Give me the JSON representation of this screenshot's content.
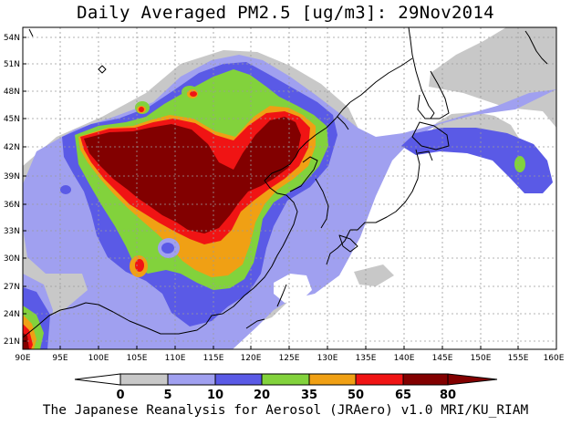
{
  "title": "Daily Averaged PM2.5 [ug/m3]: 29Nov2014",
  "credit": "The Japanese Reanalysis for Aerosol (JRAero) v1.0 MRI/KU_RIAM",
  "lat_labels": [
    "54N",
    "51N",
    "48N",
    "45N",
    "42N",
    "39N",
    "36N",
    "33N",
    "30N",
    "27N",
    "24N",
    "21N"
  ],
  "lon_labels": [
    "90E",
    "95E",
    "100E",
    "105E",
    "110E",
    "115E",
    "120E",
    "125E",
    "130E",
    "135E",
    "140E",
    "145E",
    "150E",
    "155E",
    "160E"
  ],
  "colorbar": {
    "levels": [
      "0",
      "5",
      "10",
      "20",
      "35",
      "50",
      "65",
      "80"
    ],
    "colors": [
      "#ffffff",
      "#c8c8c8",
      "#a0a0f0",
      "#5a5ae6",
      "#82d23c",
      "#f0a014",
      "#f01414",
      "#820000"
    ]
  },
  "map_colors": {
    "level_5": "#c8c8c8",
    "level_10": "#a0a0f0",
    "level_20": "#5a5ae6",
    "level_35": "#82d23c",
    "level_50": "#f0a014",
    "level_65": "#f01414",
    "level_80": "#820000",
    "coast": "#000000",
    "grid": "#9a9a9a"
  }
}
